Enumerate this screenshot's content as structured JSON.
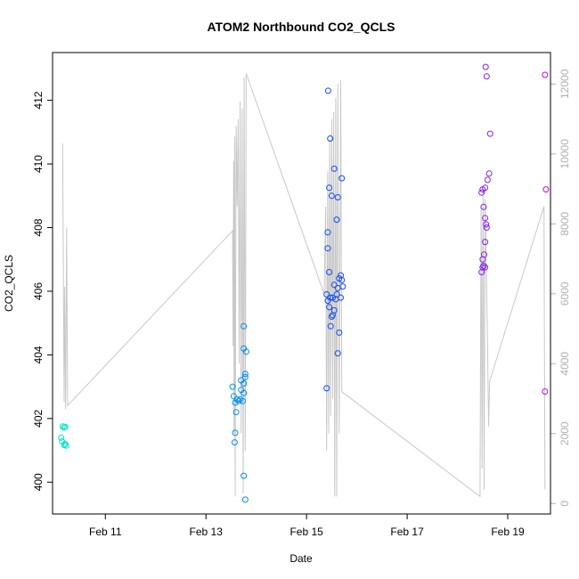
{
  "chart_data": {
    "type": "scatter",
    "title": "ATOM2 Northbound CO2_QCLS",
    "xlabel": "Date",
    "ylabel": "CO2_QCLS",
    "x_unit": "day of February",
    "xlim": [
      9.95,
      19.85
    ],
    "ylim": [
      399.0,
      413.5
    ],
    "y2lim": [
      -300,
      12900
    ],
    "x_ticks": [
      {
        "value": 11,
        "label": "Feb 11"
      },
      {
        "value": 13,
        "label": "Feb 13"
      },
      {
        "value": 15,
        "label": "Feb 15"
      },
      {
        "value": 17,
        "label": "Feb 17"
      },
      {
        "value": 19,
        "label": "Feb 19"
      }
    ],
    "y_ticks": [
      400,
      402,
      404,
      406,
      408,
      410,
      412
    ],
    "y2_ticks": [
      0,
      2000,
      4000,
      6000,
      8000,
      10000,
      12000
    ],
    "grid": false,
    "points": [
      {
        "x": 10.15,
        "y": 401.75
      },
      {
        "x": 10.18,
        "y": 401.72
      },
      {
        "x": 10.2,
        "y": 401.74
      },
      {
        "x": 10.12,
        "y": 401.4
      },
      {
        "x": 10.14,
        "y": 401.28
      },
      {
        "x": 10.18,
        "y": 401.17
      },
      {
        "x": 10.2,
        "y": 401.2
      },
      {
        "x": 10.22,
        "y": 401.15
      },
      {
        "x": 13.53,
        "y": 403.0
      },
      {
        "x": 13.55,
        "y": 402.7
      },
      {
        "x": 13.58,
        "y": 402.5
      },
      {
        "x": 13.6,
        "y": 402.2
      },
      {
        "x": 13.58,
        "y": 401.55
      },
      {
        "x": 13.57,
        "y": 401.25
      },
      {
        "x": 13.62,
        "y": 402.6
      },
      {
        "x": 13.65,
        "y": 402.55
      },
      {
        "x": 13.68,
        "y": 402.6
      },
      {
        "x": 13.7,
        "y": 402.9
      },
      {
        "x": 13.7,
        "y": 403.2
      },
      {
        "x": 13.73,
        "y": 402.55
      },
      {
        "x": 13.75,
        "y": 402.8
      },
      {
        "x": 13.75,
        "y": 403.1
      },
      {
        "x": 13.78,
        "y": 403.3
      },
      {
        "x": 13.78,
        "y": 403.4
      },
      {
        "x": 13.75,
        "y": 404.2
      },
      {
        "x": 13.8,
        "y": 404.1
      },
      {
        "x": 13.75,
        "y": 404.9
      },
      {
        "x": 13.75,
        "y": 400.2
      },
      {
        "x": 13.78,
        "y": 399.45
      },
      {
        "x": 15.4,
        "y": 402.95
      },
      {
        "x": 15.4,
        "y": 405.9
      },
      {
        "x": 15.42,
        "y": 405.7
      },
      {
        "x": 15.45,
        "y": 405.5
      },
      {
        "x": 15.47,
        "y": 405.8
      },
      {
        "x": 15.5,
        "y": 405.2
      },
      {
        "x": 15.52,
        "y": 405.25
      },
      {
        "x": 15.55,
        "y": 405.4
      },
      {
        "x": 15.58,
        "y": 405.75
      },
      {
        "x": 15.6,
        "y": 405.9
      },
      {
        "x": 15.62,
        "y": 406.1
      },
      {
        "x": 15.65,
        "y": 406.4
      },
      {
        "x": 15.68,
        "y": 406.5
      },
      {
        "x": 15.7,
        "y": 406.35
      },
      {
        "x": 15.72,
        "y": 406.15
      },
      {
        "x": 15.68,
        "y": 405.8
      },
      {
        "x": 15.52,
        "y": 405.8
      },
      {
        "x": 15.55,
        "y": 406.2
      },
      {
        "x": 15.48,
        "y": 404.9
      },
      {
        "x": 15.65,
        "y": 404.7
      },
      {
        "x": 15.62,
        "y": 404.05
      },
      {
        "x": 15.45,
        "y": 406.6
      },
      {
        "x": 15.42,
        "y": 407.35
      },
      {
        "x": 15.42,
        "y": 407.85
      },
      {
        "x": 15.6,
        "y": 408.25
      },
      {
        "x": 15.45,
        "y": 409.25
      },
      {
        "x": 15.5,
        "y": 409.0
      },
      {
        "x": 15.62,
        "y": 408.95
      },
      {
        "x": 15.55,
        "y": 409.85
      },
      {
        "x": 15.7,
        "y": 409.55
      },
      {
        "x": 15.47,
        "y": 410.8
      },
      {
        "x": 15.43,
        "y": 412.3
      },
      {
        "x": 18.48,
        "y": 406.6
      },
      {
        "x": 18.5,
        "y": 406.75
      },
      {
        "x": 18.52,
        "y": 406.8
      },
      {
        "x": 18.55,
        "y": 406.75
      },
      {
        "x": 18.5,
        "y": 407.0
      },
      {
        "x": 18.53,
        "y": 407.15
      },
      {
        "x": 18.55,
        "y": 407.55
      },
      {
        "x": 18.58,
        "y": 408.0
      },
      {
        "x": 18.55,
        "y": 408.3
      },
      {
        "x": 18.57,
        "y": 408.1
      },
      {
        "x": 18.52,
        "y": 408.65
      },
      {
        "x": 18.48,
        "y": 409.1
      },
      {
        "x": 18.5,
        "y": 409.2
      },
      {
        "x": 18.55,
        "y": 409.25
      },
      {
        "x": 18.6,
        "y": 409.5
      },
      {
        "x": 18.63,
        "y": 409.7
      },
      {
        "x": 18.65,
        "y": 410.95
      },
      {
        "x": 18.58,
        "y": 412.75
      },
      {
        "x": 18.56,
        "y": 413.05
      },
      {
        "x": 19.74,
        "y": 412.8
      },
      {
        "x": 19.76,
        "y": 409.2
      },
      {
        "x": 19.74,
        "y": 402.85
      }
    ],
    "secondary_line": [
      {
        "x": 10.15,
        "y2": 10300
      },
      {
        "x": 10.18,
        "y2": 2900
      },
      {
        "x": 10.19,
        "y2": 6200
      },
      {
        "x": 10.21,
        "y2": 2700
      },
      {
        "x": 10.23,
        "y2": 7900
      },
      {
        "x": 10.25,
        "y2": 2800
      },
      {
        "x": 13.53,
        "y2": 7800
      },
      {
        "x": 13.54,
        "y2": 4500
      },
      {
        "x": 13.55,
        "y2": 9800
      },
      {
        "x": 13.56,
        "y2": 2000
      },
      {
        "x": 13.57,
        "y2": 10500
      },
      {
        "x": 13.58,
        "y2": 200
      },
      {
        "x": 13.6,
        "y2": 10800
      },
      {
        "x": 13.62,
        "y2": 8500
      },
      {
        "x": 13.64,
        "y2": 11000
      },
      {
        "x": 13.66,
        "y2": 4000
      },
      {
        "x": 13.68,
        "y2": 11500
      },
      {
        "x": 13.7,
        "y2": 2000
      },
      {
        "x": 13.72,
        "y2": 11300
      },
      {
        "x": 13.74,
        "y2": 300
      },
      {
        "x": 13.76,
        "y2": 12200
      },
      {
        "x": 13.78,
        "y2": 1500
      },
      {
        "x": 13.8,
        "y2": 12300
      },
      {
        "x": 15.35,
        "y2": 6000
      },
      {
        "x": 15.38,
        "y2": 8500
      },
      {
        "x": 15.4,
        "y2": 1500
      },
      {
        "x": 15.42,
        "y2": 9500
      },
      {
        "x": 15.44,
        "y2": 2000
      },
      {
        "x": 15.46,
        "y2": 10400
      },
      {
        "x": 15.48,
        "y2": 2500
      },
      {
        "x": 15.5,
        "y2": 11000
      },
      {
        "x": 15.52,
        "y2": 3000
      },
      {
        "x": 15.54,
        "y2": 11200
      },
      {
        "x": 15.56,
        "y2": 200
      },
      {
        "x": 15.58,
        "y2": 11600
      },
      {
        "x": 15.6,
        "y2": 200
      },
      {
        "x": 15.62,
        "y2": 12000
      },
      {
        "x": 15.65,
        "y2": 2000
      },
      {
        "x": 15.68,
        "y2": 12100
      },
      {
        "x": 15.7,
        "y2": 3200
      },
      {
        "x": 18.45,
        "y2": 200
      },
      {
        "x": 18.47,
        "y2": 8500
      },
      {
        "x": 18.49,
        "y2": 1000
      },
      {
        "x": 18.51,
        "y2": 9000
      },
      {
        "x": 18.53,
        "y2": 400
      },
      {
        "x": 18.55,
        "y2": 8700
      },
      {
        "x": 18.6,
        "y2": 4500
      },
      {
        "x": 18.62,
        "y2": 2200
      },
      {
        "x": 18.64,
        "y2": 3500
      },
      {
        "x": 19.72,
        "y2": 8500
      },
      {
        "x": 19.74,
        "y2": 400
      }
    ],
    "colors": {
      "line": "#c8c8c8",
      "right_axis": "#b0b0b0",
      "frame": "#000000",
      "point_scale": [
        "#00e5c8",
        "#00c0e0",
        "#0050ff",
        "#4a3df0",
        "#c800e8"
      ]
    }
  }
}
